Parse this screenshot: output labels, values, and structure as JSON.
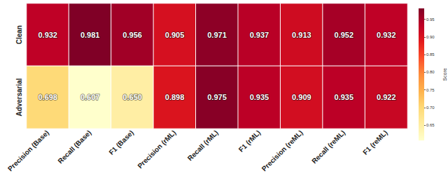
{
  "chart_data": {
    "type": "heatmap",
    "x_categories": [
      "Precision (Base)",
      "Recall (Base)",
      "F1 (Base)",
      "Precision (rML)",
      "Recall (rML)",
      "F1 (rML)",
      "Precision (reML)",
      "Recall (reML)",
      "F1 (reML)"
    ],
    "y_categories": [
      "Clean",
      "Adversarial"
    ],
    "cells": [
      [
        0.932,
        0.981,
        0.956,
        0.905,
        0.971,
        0.937,
        0.913,
        0.952,
        0.932
      ],
      [
        0.698,
        0.607,
        0.65,
        0.898,
        0.975,
        0.935,
        0.909,
        0.935,
        0.922
      ]
    ],
    "value_labels": [
      [
        "0.932",
        "0.981",
        "0.956",
        "0.905",
        "0.971",
        "0.937",
        "0.913",
        "0.952",
        "0.932"
      ],
      [
        "0.698",
        "0.607",
        "0.650",
        "0.898",
        "0.975",
        "0.935",
        "0.909",
        "0.935",
        "0.922"
      ]
    ],
    "color_range": [
      0.607,
      0.981
    ],
    "color_ticks": [
      0.65,
      {
        "value": 0.7,
        "label": "0.70"
      },
      0.75,
      {
        "value": 0.8,
        "label": "0.80"
      },
      0.85,
      {
        "value": 0.9,
        "label": "0.90"
      },
      0.95
    ],
    "colorbar_label": "Score",
    "data_labels": true
  }
}
